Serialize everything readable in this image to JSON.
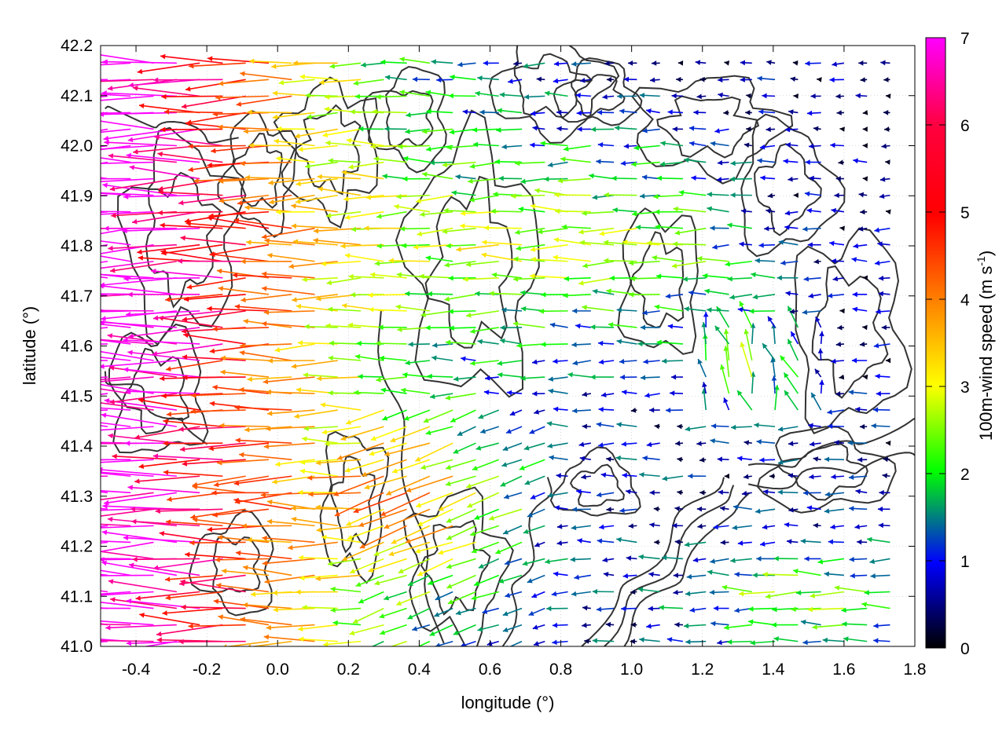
{
  "chart_data": {
    "type": "vector-field",
    "xlabel": "longitude (°)",
    "ylabel": "latitude (°)",
    "xlim": [
      -0.5,
      1.8
    ],
    "ylim": [
      41.0,
      42.2
    ],
    "xticks": [
      "-0.4",
      "-0.2",
      "0.0",
      "0.2",
      "0.4",
      "0.6",
      "0.8",
      "1.0",
      "1.2",
      "1.4",
      "1.6",
      "1.8"
    ],
    "xtick_values": [
      -0.4,
      -0.2,
      0.0,
      0.2,
      0.4,
      0.6,
      0.8,
      1.0,
      1.2,
      1.4,
      1.6,
      1.8
    ],
    "yticks": [
      "41.0",
      "41.1",
      "41.2",
      "41.3",
      "41.4",
      "41.5",
      "41.6",
      "41.7",
      "41.8",
      "41.9",
      "42.0",
      "42.1",
      "42.2"
    ],
    "ytick_values": [
      41.0,
      41.1,
      41.2,
      41.3,
      41.4,
      41.5,
      41.6,
      41.7,
      41.8,
      41.9,
      42.0,
      42.1,
      42.2
    ],
    "colorbar": {
      "label_main": "100m-wind speed (m s",
      "label_sup": "-1",
      "label_end": ")",
      "range": [
        0,
        7
      ],
      "ticks": [
        "0",
        "1",
        "2",
        "3",
        "4",
        "5",
        "6",
        "7"
      ],
      "tick_values": [
        0,
        1,
        2,
        3,
        4,
        5,
        6,
        7
      ],
      "palette": [
        "#000000",
        "#0000ff",
        "#00ff00",
        "#ffff00",
        "#ff8000",
        "#ff0000",
        "#ff00ff"
      ]
    },
    "grid": "dotted",
    "contours": "terrain elevation isolines (dark gray)",
    "contour_color": "#333333",
    "description": "wind vectors colored by 100 m wind speed over lon -0.5..1.8, lat 41.0..42.2"
  }
}
